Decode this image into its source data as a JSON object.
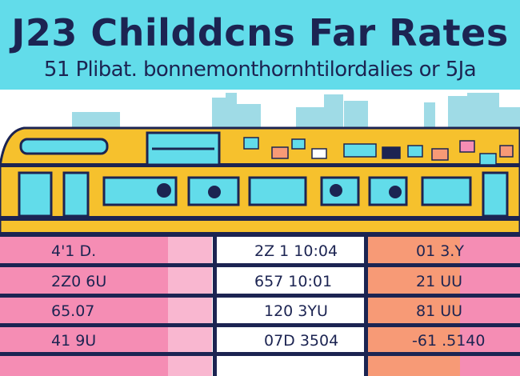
{
  "header": {
    "title": "J23 Childdcns Far Rates",
    "subtitle": "51 Plibat. bonnemonthornhtilordalies or 5Ja"
  },
  "colors": {
    "banner": "#62dcea",
    "navy": "#1c2452",
    "bus_yellow": "#f6c12d",
    "window": "#62dcea",
    "pink": "#f58db4",
    "peach": "#f79a76"
  },
  "table": {
    "rows": [
      {
        "col1": "4'1 D.",
        "col2": "2Z 1 10:04",
        "col3": "01 3.Y"
      },
      {
        "col1": "2Z0 6U",
        "col2": "657 10:01",
        "col3": "21 UU"
      },
      {
        "col1": "65.07",
        "col2": "120 3YU",
        "col3": "81 UU"
      },
      {
        "col1": "41 9U",
        "col2": "07D 3504",
        "col3": "-61 .5140"
      }
    ]
  }
}
